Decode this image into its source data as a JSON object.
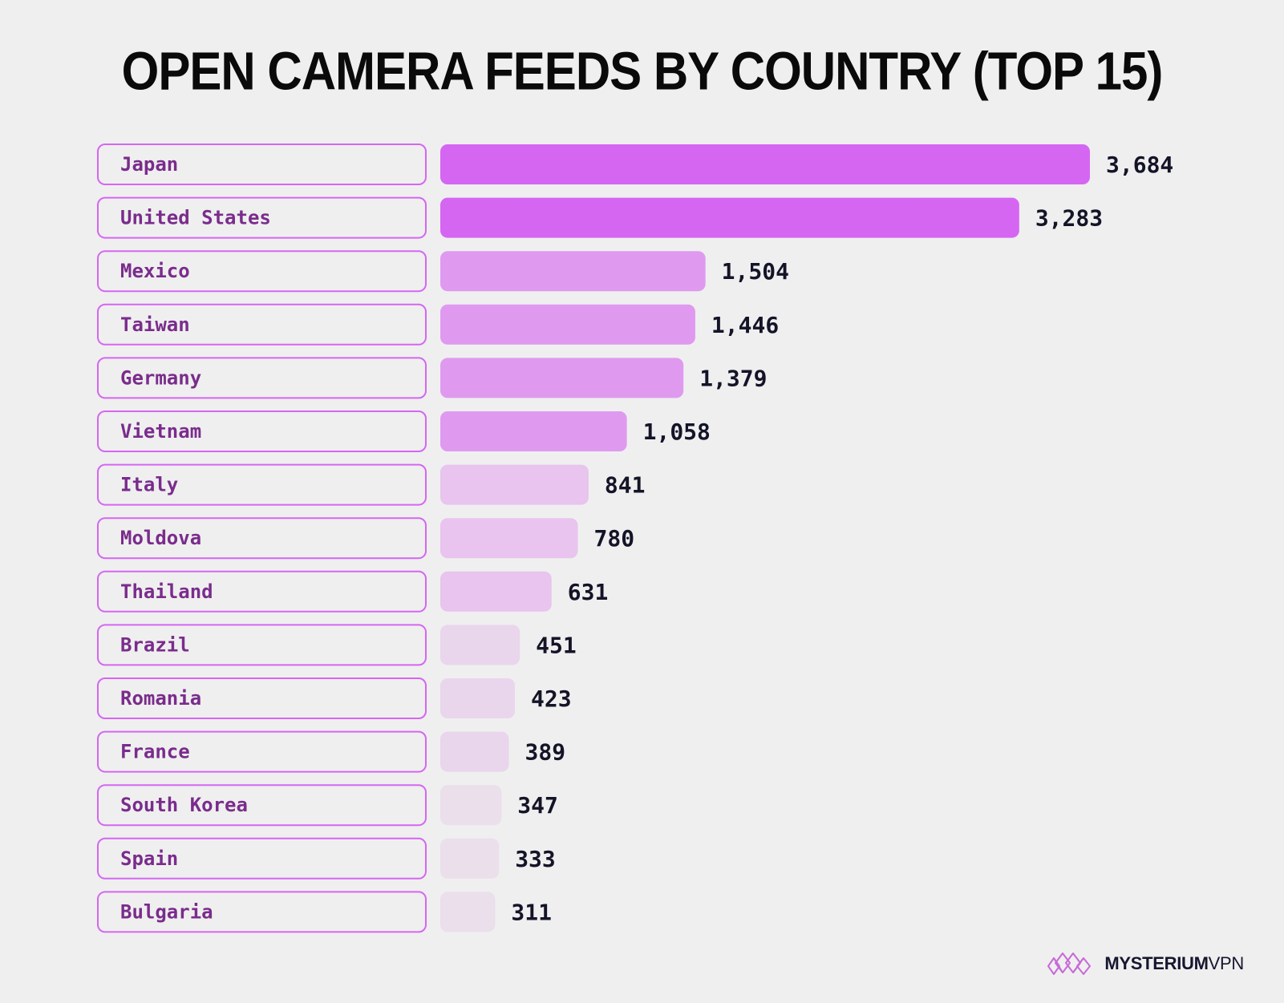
{
  "chart_data": {
    "type": "bar",
    "orientation": "horizontal",
    "title": "OPEN CAMERA FEEDS BY COUNTRY (TOP 15)",
    "categories": [
      "Japan",
      "United States",
      "Mexico",
      "Taiwan",
      "Germany",
      "Vietnam",
      "Italy",
      "Moldova",
      "Thailand",
      "Brazil",
      "Romania",
      "France",
      "South Korea",
      "Spain",
      "Bulgaria"
    ],
    "values": [
      3684,
      3283,
      1504,
      1446,
      1379,
      1058,
      841,
      780,
      631,
      451,
      423,
      389,
      347,
      333,
      311
    ],
    "value_labels": [
      "3,684",
      "3,283",
      "1,504",
      "1,446",
      "1,379",
      "1,058",
      "841",
      "780",
      "631",
      "451",
      "423",
      "389",
      "347",
      "333",
      "311"
    ],
    "bar_colors": [
      "#d566f2",
      "#d566f2",
      "#df9af0",
      "#df9af0",
      "#df9af0",
      "#df9af0",
      "#e8c4ee",
      "#e8c4ee",
      "#e8c4ee",
      "#e9d5ec",
      "#e9d5ec",
      "#e9d5ec",
      "#eadfeb",
      "#eadfeb",
      "#eadfeb"
    ],
    "label_border_color": "#d566f2",
    "label_text_color": "#7a2c8c",
    "value_text_color": "#141428",
    "grid": false,
    "legend": "none"
  },
  "brand": {
    "name_bold": "MYSTERIUM",
    "name_light": "VPN",
    "logo_icon": "mysterium-logo-icon"
  }
}
